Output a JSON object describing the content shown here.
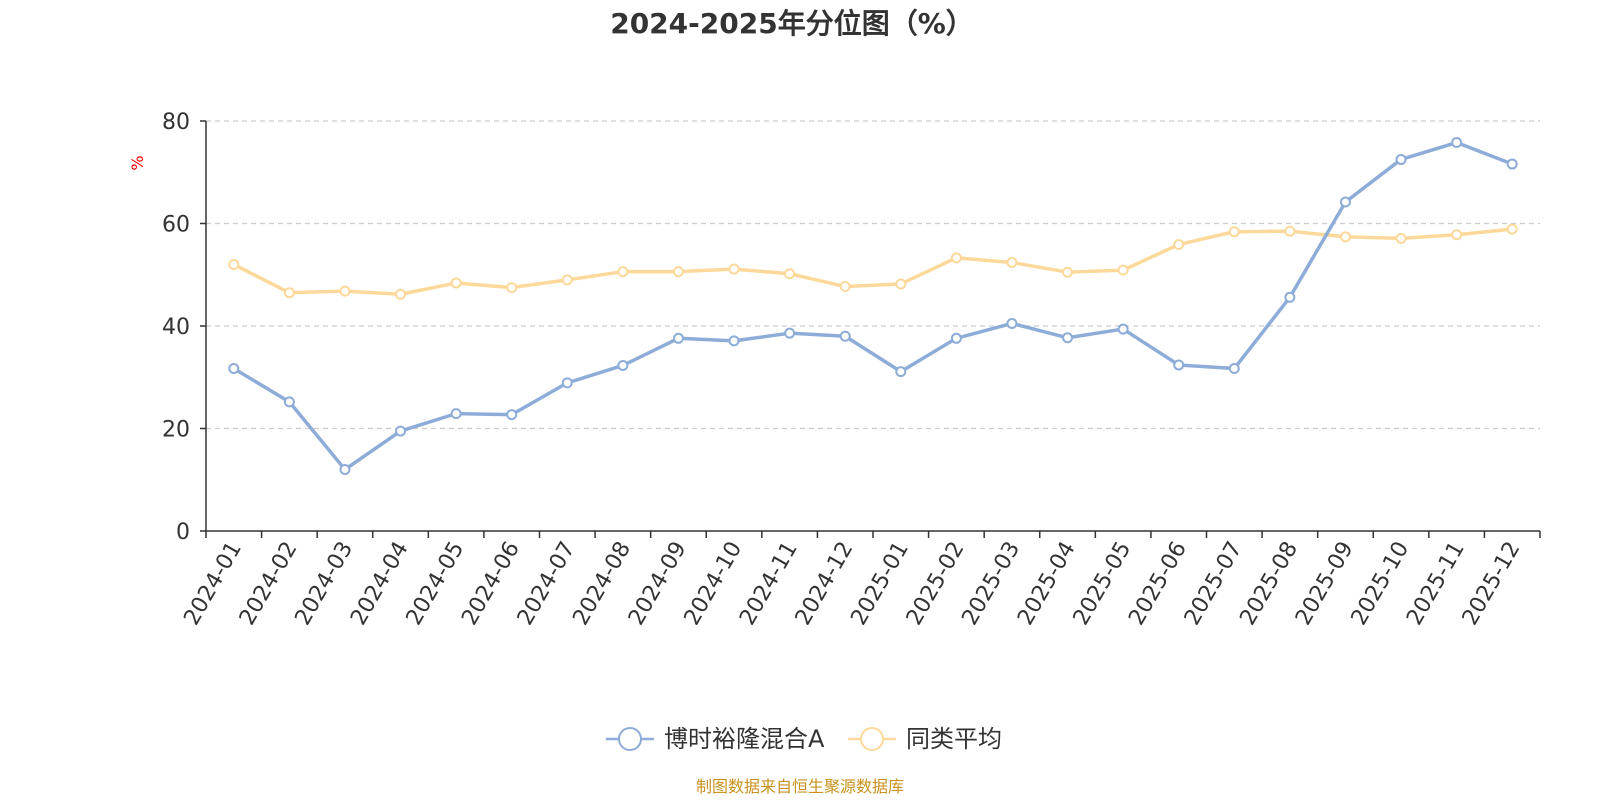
{
  "chart_data": {
    "type": "line",
    "title": "2024-2025年分位图（%）",
    "ylabel": "%",
    "xlabel": "",
    "ylim": [
      0,
      80
    ],
    "yticks": [
      0,
      20,
      40,
      60,
      80
    ],
    "grid": true,
    "legend_position": "bottom",
    "categories": [
      "2024-01",
      "2024-02",
      "2024-03",
      "2024-04",
      "2024-05",
      "2024-06",
      "2024-07",
      "2024-08",
      "2024-09",
      "2024-10",
      "2024-11",
      "2024-12",
      "2025-01",
      "2025-02",
      "2025-03",
      "2025-04",
      "2025-05",
      "2025-06",
      "2025-07",
      "2025-08",
      "2025-09",
      "2025-10",
      "2025-11",
      "2025-12"
    ],
    "series": [
      {
        "name": "博时裕隆混合A",
        "color": "#8eacd8",
        "values": [
          31.7,
          25.2,
          12.0,
          19.5,
          22.9,
          22.7,
          28.9,
          32.3,
          37.6,
          37.1,
          38.6,
          38.0,
          31.1,
          37.6,
          40.5,
          37.7,
          39.4,
          32.4,
          31.7,
          45.6,
          64.2,
          72.5,
          75.8,
          71.6
        ]
      },
      {
        "name": "同类平均",
        "color": "#fcd99a",
        "values": [
          52.0,
          46.5,
          46.8,
          46.2,
          48.4,
          47.5,
          49.0,
          50.6,
          50.6,
          51.1,
          50.2,
          47.7,
          48.2,
          53.3,
          52.4,
          50.5,
          50.9,
          55.9,
          58.4,
          58.5,
          57.4,
          57.1,
          57.8,
          58.9
        ]
      }
    ]
  },
  "footer": {
    "source": "制图数据来自恒生聚源数据库"
  },
  "colors": {
    "title": "#333333",
    "axis": "#333333",
    "grid": "#cccccc",
    "ylabel": "#ff0000",
    "source": "#c8921e"
  }
}
